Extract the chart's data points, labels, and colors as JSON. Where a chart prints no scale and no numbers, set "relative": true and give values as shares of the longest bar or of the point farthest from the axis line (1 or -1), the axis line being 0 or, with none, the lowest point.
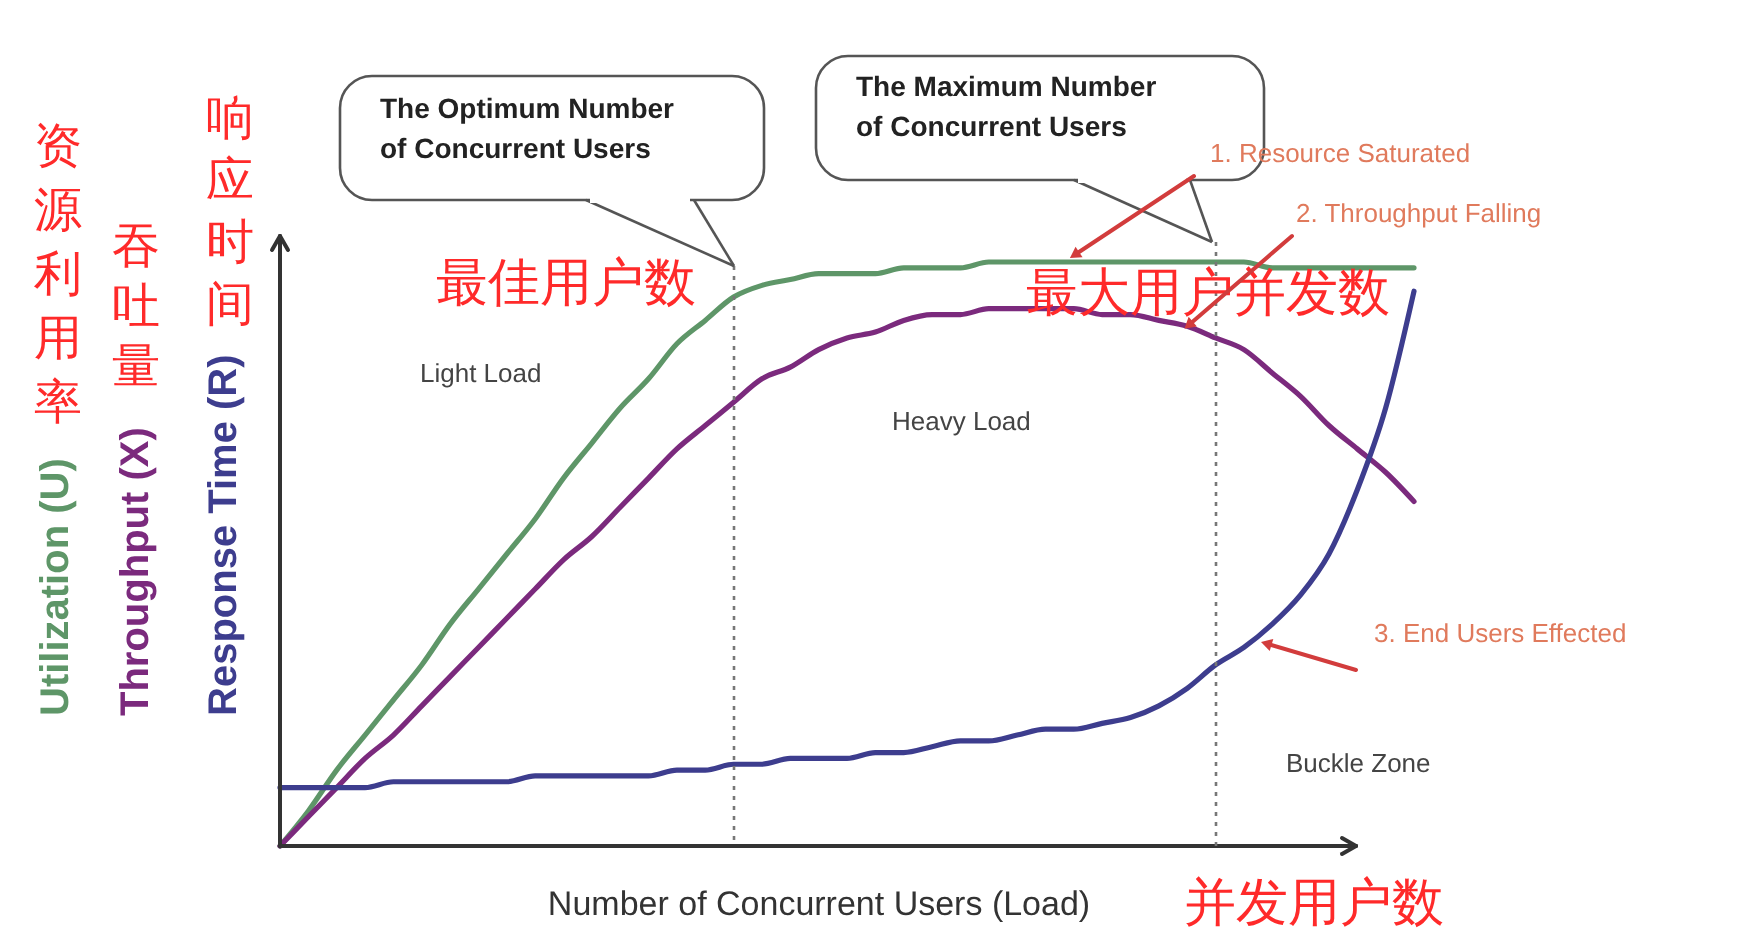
{
  "chart_data": {
    "type": "line",
    "relative": true,
    "legend": false,
    "grid": false,
    "tick_labels": false,
    "marker": "none",
    "line_style": "solid",
    "xlabel": "Number of  Concurrent Users (Load)",
    "categories": [
      null,
      null,
      null,
      null,
      null,
      null,
      null,
      null,
      null,
      null,
      null,
      null,
      null,
      null,
      null,
      null,
      null,
      null,
      null,
      null,
      null,
      null,
      null,
      null,
      null,
      null,
      null,
      null,
      null,
      null,
      null,
      null,
      null,
      null,
      null,
      null,
      null,
      null,
      null,
      null,
      null
    ],
    "series": [
      {
        "name": "Utilization (U)",
        "color": "#5e9668",
        "values": [
          0,
          0.06,
          0.13,
          0.19,
          0.25,
          0.31,
          0.38,
          0.44,
          0.5,
          0.56,
          0.63,
          0.69,
          0.75,
          0.8,
          0.86,
          0.9,
          0.94,
          0.96,
          0.97,
          0.98,
          0.98,
          0.98,
          0.99,
          0.99,
          0.99,
          1.0,
          1.0,
          1.0,
          1.0,
          1.0,
          1.0,
          1.0,
          1.0,
          1.0,
          1.0,
          0.99,
          0.99,
          0.99,
          0.99,
          0.99,
          0.99
        ]
      },
      {
        "name": "Throughput (X)",
        "color": "#7b2a7d",
        "values": [
          0,
          0.05,
          0.1,
          0.15,
          0.19,
          0.24,
          0.29,
          0.34,
          0.39,
          0.44,
          0.49,
          0.53,
          0.58,
          0.63,
          0.68,
          0.72,
          0.76,
          0.8,
          0.82,
          0.85,
          0.87,
          0.88,
          0.9,
          0.91,
          0.91,
          0.92,
          0.92,
          0.92,
          0.92,
          0.91,
          0.91,
          0.9,
          0.89,
          0.87,
          0.85,
          0.81,
          0.77,
          0.72,
          0.68,
          0.64,
          0.59
        ]
      },
      {
        "name": "Response Time (R)",
        "color": "#3d3d8e",
        "values": [
          0.1,
          0.1,
          0.1,
          0.1,
          0.11,
          0.11,
          0.11,
          0.11,
          0.11,
          0.12,
          0.12,
          0.12,
          0.12,
          0.12,
          0.13,
          0.13,
          0.14,
          0.14,
          0.15,
          0.15,
          0.15,
          0.16,
          0.16,
          0.17,
          0.18,
          0.18,
          0.19,
          0.2,
          0.2,
          0.21,
          0.22,
          0.24,
          0.27,
          0.31,
          0.34,
          0.38,
          0.43,
          0.5,
          0.61,
          0.75,
          0.95
        ]
      }
    ],
    "annotations": [
      "The Optimum Number\nof Concurrent Users",
      "The Maximum Number\nof Concurrent Users",
      "资源利用率",
      "吞吐量",
      "响应时间",
      "最佳用户数",
      "最大用户并发数",
      "1. Resource Saturated",
      "2. Throughput Falling",
      "3. End Users Effected",
      "Light Load",
      "Heavy Load",
      "Buckle Zone",
      "并发用户数"
    ]
  }
}
